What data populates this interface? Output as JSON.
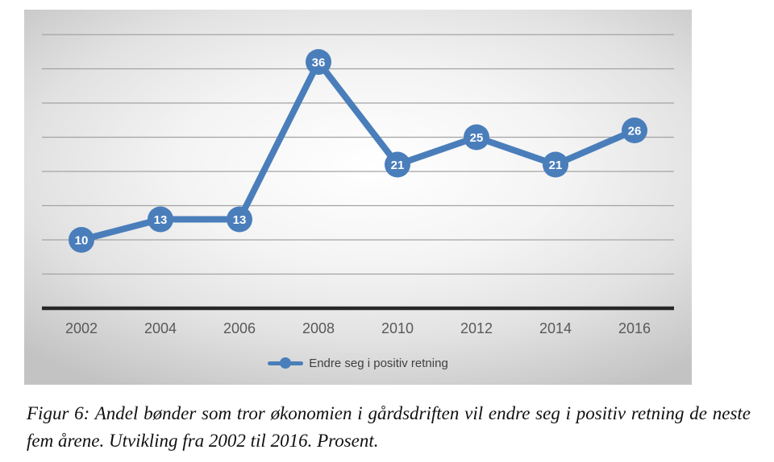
{
  "chart_data": {
    "type": "line",
    "categories": [
      "2002",
      "2004",
      "2006",
      "2008",
      "2010",
      "2012",
      "2014",
      "2016"
    ],
    "series": [
      {
        "name": "Endre seg i positiv retning",
        "values": [
          10,
          13,
          13,
          36,
          21,
          25,
          21,
          26
        ]
      }
    ],
    "title": "",
    "xlabel": "",
    "ylabel": "",
    "ylim": [
      0,
      40
    ],
    "grid_interval": 5,
    "grid": true,
    "legend_position": "bottom",
    "data_labels": true
  },
  "caption": {
    "text": "Figur 6: Andel bønder som tror økonomien i gårdsdriften vil endre seg i positiv retning de neste fem årene. Utvikling fra 2002 til 2016. Prosent."
  },
  "colors": {
    "line": "#4a7ebb",
    "marker": "#4a7ebb",
    "data_label_text": "#ffffff",
    "axis_line": "#262626",
    "gridline": "#a3a3a3",
    "tick_label": "#595959",
    "legend_text": "#3f3f3f"
  }
}
